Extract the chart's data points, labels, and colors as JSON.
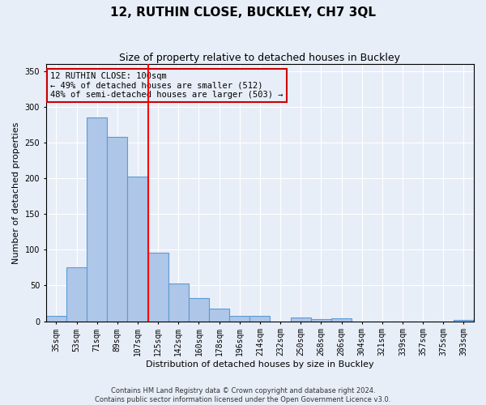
{
  "title": "12, RUTHIN CLOSE, BUCKLEY, CH7 3QL",
  "subtitle": "Size of property relative to detached houses in Buckley",
  "xlabel": "Distribution of detached houses by size in Buckley",
  "ylabel": "Number of detached properties",
  "footnote1": "Contains HM Land Registry data © Crown copyright and database right 2024.",
  "footnote2": "Contains public sector information licensed under the Open Government Licence v3.0.",
  "categories": [
    "35sqm",
    "53sqm",
    "71sqm",
    "89sqm",
    "107sqm",
    "125sqm",
    "142sqm",
    "160sqm",
    "178sqm",
    "196sqm",
    "214sqm",
    "232sqm",
    "250sqm",
    "268sqm",
    "286sqm",
    "304sqm",
    "321sqm",
    "339sqm",
    "357sqm",
    "375sqm",
    "393sqm"
  ],
  "values": [
    8,
    75,
    285,
    258,
    202,
    96,
    53,
    32,
    18,
    7,
    7,
    0,
    5,
    3,
    4,
    0,
    0,
    0,
    0,
    0,
    2
  ],
  "bar_color": "#aec6e8",
  "bar_edge_color": "#5b9bd5",
  "red_line_index": 4,
  "annotation_line1": "12 RUTHIN CLOSE: 100sqm",
  "annotation_line2": "← 49% of detached houses are smaller (512)",
  "annotation_line3": "48% of semi-detached houses are larger (503) →",
  "annotation_box_edge": "#cc0000",
  "ylim": [
    0,
    360
  ],
  "yticks": [
    0,
    50,
    100,
    150,
    200,
    250,
    300,
    350
  ],
  "background_color": "#e8eef8",
  "grid_color": "#ffffff",
  "title_fontsize": 11,
  "subtitle_fontsize": 9,
  "label_fontsize": 8,
  "tick_fontsize": 7,
  "annotation_fontsize": 7.5,
  "footnote_fontsize": 6
}
